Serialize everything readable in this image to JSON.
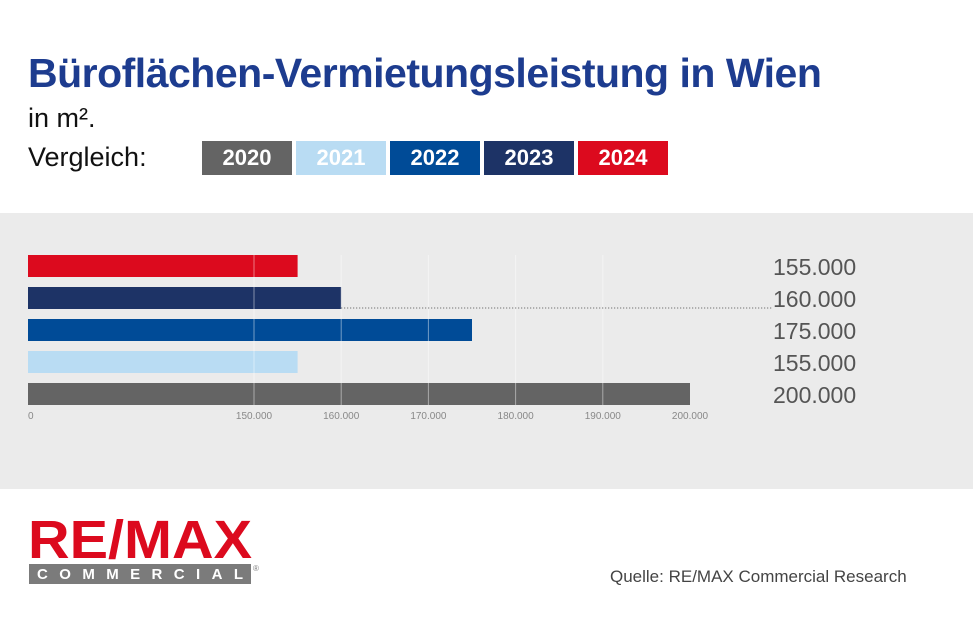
{
  "header": {
    "title": "Büroflächen-Vermietungsleistung in Wien",
    "subtitle": "in m².",
    "compare_label": "Vergleich:"
  },
  "legend": [
    {
      "label": "2020",
      "color": "#646464"
    },
    {
      "label": "2021",
      "color": "#b9dcf3"
    },
    {
      "label": "2022",
      "color": "#004b97"
    },
    {
      "label": "2023",
      "color": "#1d3366"
    },
    {
      "label": "2024",
      "color": "#dc0a1e"
    }
  ],
  "chart_data": {
    "type": "bar",
    "orientation": "horizontal",
    "categories": [
      "2024",
      "2023",
      "2022",
      "2021",
      "2020"
    ],
    "values": [
      155000,
      160000,
      175000,
      155000,
      200000
    ],
    "value_labels": [
      "155.000",
      "160.000",
      "175.000",
      "155.000",
      "200.000"
    ],
    "colors": [
      "#dc0a1e",
      "#1d3366",
      "#004b97",
      "#b9dcf3",
      "#646464"
    ],
    "x_ticks": [
      0,
      150000,
      160000,
      170000,
      180000,
      190000,
      200000
    ],
    "x_tick_labels": [
      "0",
      "150.000",
      "160.000",
      "170.000",
      "180.000",
      "190.000",
      "200.000"
    ],
    "axis_break": true,
    "grid": "vertical",
    "title": "",
    "xlabel": "",
    "ylabel": ""
  },
  "footer": {
    "brand_top": "RE/MAX",
    "brand_bottom": "COMMERCIAL",
    "brand_mark": "®",
    "source": "Quelle: RE/MAX Commercial Research"
  }
}
